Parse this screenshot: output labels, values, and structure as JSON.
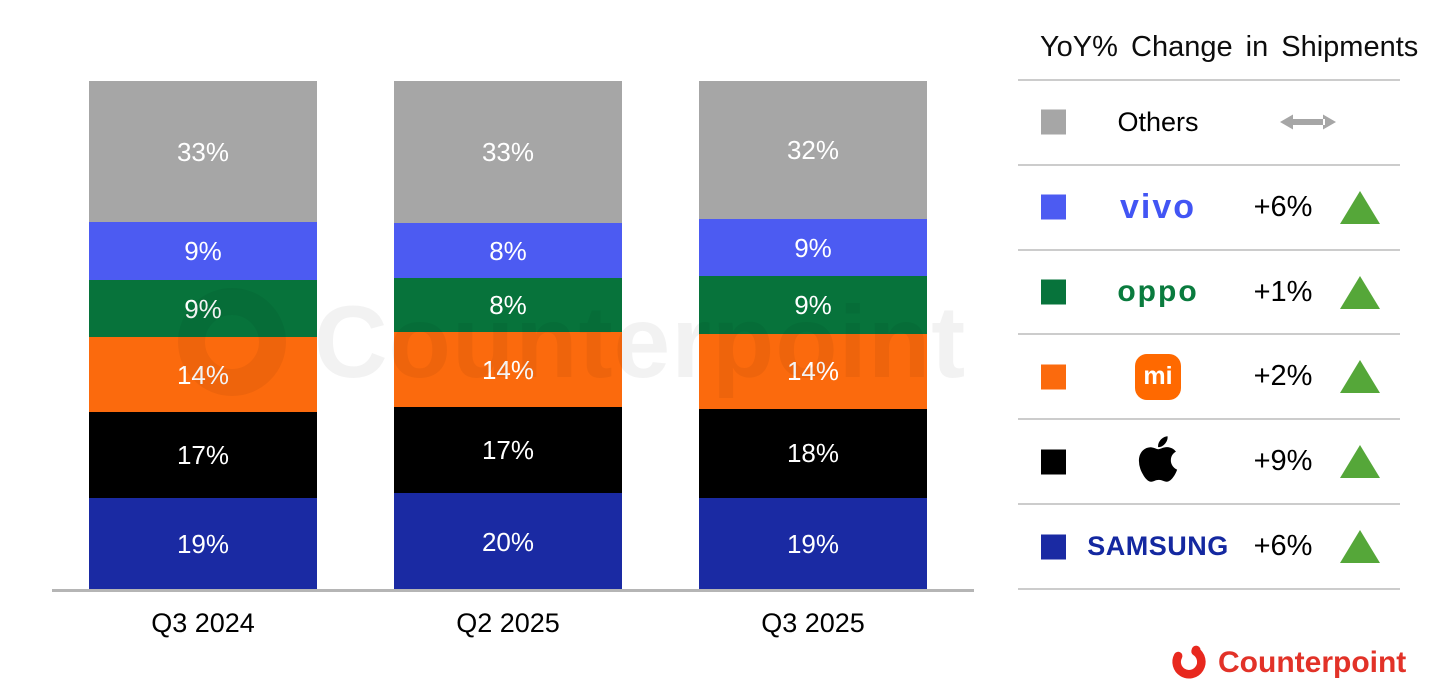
{
  "legend": {
    "title": "YoY% Change in Shipments",
    "rows": [
      {
        "brand": "Others",
        "logo_type": "text",
        "logo_text": "Others",
        "logo_color": "#000000",
        "swatch": "#a6a6a6",
        "change": "",
        "direction": "flat"
      },
      {
        "brand": "vivo",
        "logo_type": "wordmark-vivo",
        "logo_text": "vivo",
        "logo_color": "#4255f4",
        "swatch": "#4c5bf2",
        "change": "+6%",
        "direction": "up"
      },
      {
        "brand": "OPPO",
        "logo_type": "wordmark-oppo",
        "logo_text": "oppo",
        "logo_color": "#0a7b3e",
        "swatch": "#07733b",
        "change": "+1%",
        "direction": "up"
      },
      {
        "brand": "Xiaomi",
        "logo_type": "mi-icon",
        "logo_text": "mi",
        "logo_color": "#ff6900",
        "swatch": "#fb6a0d",
        "change": "+2%",
        "direction": "up"
      },
      {
        "brand": "Apple",
        "logo_type": "apple-icon",
        "logo_text": "",
        "logo_color": "#000000",
        "swatch": "#000000",
        "change": "+9%",
        "direction": "up"
      },
      {
        "brand": "Samsung",
        "logo_type": "wordmark-samsung",
        "logo_text": "SAMSUNG",
        "logo_color": "#1428a0",
        "swatch": "#1a2aa3",
        "change": "+6%",
        "direction": "up"
      }
    ]
  },
  "chart_data": {
    "type": "bar",
    "subtype": "100%-stacked-column",
    "title": "YoY% Change in Shipments",
    "categories": [
      "Q3 2024",
      "Q2 2025",
      "Q3 2025"
    ],
    "series": [
      {
        "name": "Others",
        "color": "#a6a6a6",
        "values": [
          33,
          33,
          32
        ]
      },
      {
        "name": "vivo",
        "color": "#4c5bf2",
        "values": [
          9,
          8,
          9
        ]
      },
      {
        "name": "OPPO",
        "color": "#07733b",
        "values": [
          9,
          8,
          9
        ]
      },
      {
        "name": "Xiaomi",
        "color": "#fb6a0d",
        "values": [
          14,
          14,
          14
        ]
      },
      {
        "name": "Apple",
        "color": "#000000",
        "values": [
          17,
          17,
          18
        ]
      },
      {
        "name": "Samsung",
        "color": "#1a2aa3",
        "values": [
          19,
          20,
          19
        ]
      }
    ],
    "yoy_change": {
      "Others": "flat",
      "vivo": "+6%",
      "OPPO": "+1%",
      "Xiaomi": "+2%",
      "Apple": "+9%",
      "Samsung": "+6%"
    },
    "unit": "%",
    "value_labels": true,
    "stack_order_bottom_to_top": [
      "Samsung",
      "Apple",
      "Xiaomi",
      "OPPO",
      "vivo",
      "Others"
    ],
    "xlabel": "",
    "ylabel": "",
    "ylim": [
      0,
      100
    ],
    "grid": false,
    "legend_position": "right"
  },
  "watermark": {
    "text": "Counterpoint"
  },
  "footer": {
    "brand": "Counterpoint",
    "color": "#e23228"
  },
  "colors": {
    "up_green": "#55a739",
    "flat_gray": "#a6a6a6",
    "axis_line": "#b5b5b5",
    "divider": "#cccccc",
    "bar_label_text": "#ffffff"
  }
}
